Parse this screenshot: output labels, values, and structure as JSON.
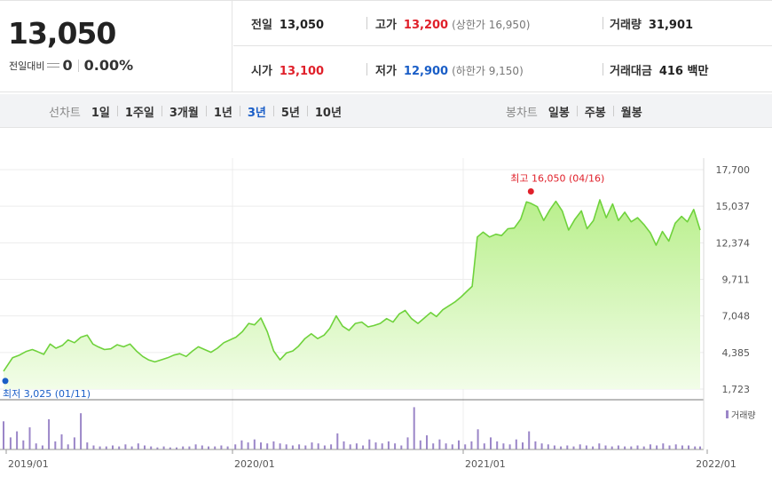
{
  "quote": {
    "price": "13,050",
    "change_label": "전일대비",
    "change_value": "0",
    "change_rate": "0.00%",
    "row1": {
      "prev_label": "전일",
      "prev_value": "13,050",
      "high_label": "고가",
      "high_value": "13,200",
      "upper_limit": "(상한가 16,950)",
      "volume_label": "거래량",
      "volume_value": "31,901"
    },
    "row2": {
      "open_label": "시가",
      "open_value": "13,100",
      "low_label": "저가",
      "low_value": "12,900",
      "lower_limit": "(하한가 9,150)",
      "amount_label": "거래대금",
      "amount_value": "416 백만"
    }
  },
  "toolbar": {
    "line_chart_label": "선차트",
    "periods": [
      "1일",
      "1주일",
      "3개월",
      "1년",
      "3년",
      "5년",
      "10년"
    ],
    "active_period": "3년",
    "candle_chart_label": "봉차트",
    "candle_periods": [
      "일봉",
      "주봉",
      "월봉"
    ]
  },
  "colors": {
    "up": "#e0202a",
    "down": "#1a5ec7",
    "line": "#6fd23c",
    "area_top": "#b9ef8c",
    "area_bottom": "#f2fde8",
    "volume": "#9b86c8"
  },
  "chart_data": {
    "type": "area",
    "ylim": [
      1723,
      17700
    ],
    "y_ticks": [
      "17,700",
      "15,037",
      "12,374",
      "9,711",
      "7,048",
      "4,385",
      "1,723"
    ],
    "x_ticks": [
      "2019/01",
      "2020/01",
      "2021/01",
      "2022/01"
    ],
    "volume_legend": "거래량",
    "max_annotation": "최고 16,050 (04/16)",
    "min_annotation": "최저 3,025 (01/11)",
    "max_value": 16050,
    "min_value": 3025,
    "x_start": "2019/01/11",
    "x_end": "2022/01",
    "price_series": [
      [
        "2019-01-11",
        3025
      ],
      [
        "2019-01-25",
        4000
      ],
      [
        "2019-02-05",
        4200
      ],
      [
        "2019-02-15",
        4450
      ],
      [
        "2019-02-25",
        4600
      ],
      [
        "2019-03-05",
        4450
      ],
      [
        "2019-03-15",
        4250
      ],
      [
        "2019-03-25",
        5000
      ],
      [
        "2019-04-03",
        4700
      ],
      [
        "2019-04-13",
        4900
      ],
      [
        "2019-04-22",
        5300
      ],
      [
        "2019-05-02",
        5100
      ],
      [
        "2019-05-12",
        5500
      ],
      [
        "2019-05-22",
        5650
      ],
      [
        "2019-05-31",
        5000
      ],
      [
        "2019-06-08",
        4800
      ],
      [
        "2019-06-18",
        4600
      ],
      [
        "2019-06-28",
        4650
      ],
      [
        "2019-07-08",
        4950
      ],
      [
        "2019-07-18",
        4800
      ],
      [
        "2019-07-28",
        5000
      ],
      [
        "2019-08-07",
        4500
      ],
      [
        "2019-08-17",
        4100
      ],
      [
        "2019-08-26",
        3850
      ],
      [
        "2019-09-05",
        3700
      ],
      [
        "2019-09-15",
        3850
      ],
      [
        "2019-09-25",
        4000
      ],
      [
        "2019-10-05",
        4200
      ],
      [
        "2019-10-14",
        4300
      ],
      [
        "2019-10-24",
        4100
      ],
      [
        "2019-11-03",
        4500
      ],
      [
        "2019-11-12",
        4800
      ],
      [
        "2019-11-22",
        4600
      ],
      [
        "2019-12-02",
        4400
      ],
      [
        "2019-12-12",
        4700
      ],
      [
        "2019-12-22",
        5100
      ],
      [
        "2020-01-10",
        5500
      ],
      [
        "2020-01-20",
        5900
      ],
      [
        "2020-01-30",
        6500
      ],
      [
        "2020-02-08",
        6400
      ],
      [
        "2020-02-18",
        6900
      ],
      [
        "2020-02-28",
        5900
      ],
      [
        "2020-03-09",
        4500
      ],
      [
        "2020-03-19",
        3850
      ],
      [
        "2020-03-29",
        4350
      ],
      [
        "2020-04-08",
        4500
      ],
      [
        "2020-04-17",
        4850
      ],
      [
        "2020-04-27",
        5400
      ],
      [
        "2020-05-07",
        5750
      ],
      [
        "2020-05-17",
        5400
      ],
      [
        "2020-05-27",
        5650
      ],
      [
        "2020-06-05",
        6150
      ],
      [
        "2020-06-15",
        7050
      ],
      [
        "2020-06-25",
        6300
      ],
      [
        "2020-07-05",
        6000
      ],
      [
        "2020-07-15",
        6500
      ],
      [
        "2020-07-25",
        6600
      ],
      [
        "2020-08-04",
        6250
      ],
      [
        "2020-08-13",
        6350
      ],
      [
        "2020-08-23",
        6500
      ],
      [
        "2020-09-02",
        6850
      ],
      [
        "2020-09-12",
        6600
      ],
      [
        "2020-09-22",
        7200
      ],
      [
        "2020-10-01",
        7450
      ],
      [
        "2020-10-11",
        6850
      ],
      [
        "2020-10-21",
        6500
      ],
      [
        "2020-10-31",
        6900
      ],
      [
        "2020-11-10",
        7300
      ],
      [
        "2020-11-19",
        7000
      ],
      [
        "2020-11-29",
        7500
      ],
      [
        "2020-12-09",
        7800
      ],
      [
        "2020-12-19",
        8100
      ],
      [
        "2020-12-28",
        8450
      ],
      [
        "2021-01-07",
        8900
      ],
      [
        "2021-01-14",
        9200
      ],
      [
        "2021-01-22",
        12800
      ],
      [
        "2021-01-31",
        13150
      ],
      [
        "2021-02-10",
        12800
      ],
      [
        "2021-02-20",
        13000
      ],
      [
        "2021-03-01",
        12900
      ],
      [
        "2021-03-11",
        13400
      ],
      [
        "2021-03-21",
        13450
      ],
      [
        "2021-03-31",
        14100
      ],
      [
        "2021-04-09",
        15350
      ],
      [
        "2021-04-16",
        15250
      ],
      [
        "2021-04-26",
        15000
      ],
      [
        "2021-05-06",
        14000
      ],
      [
        "2021-05-16",
        14800
      ],
      [
        "2021-05-25",
        15400
      ],
      [
        "2021-06-04",
        14700
      ],
      [
        "2021-06-14",
        13300
      ],
      [
        "2021-06-24",
        14100
      ],
      [
        "2021-07-04",
        14700
      ],
      [
        "2021-07-13",
        13400
      ],
      [
        "2021-07-23",
        14000
      ],
      [
        "2021-08-02",
        15500
      ],
      [
        "2021-08-12",
        14200
      ],
      [
        "2021-08-22",
        15200
      ],
      [
        "2021-08-31",
        14000
      ],
      [
        "2021-09-10",
        14600
      ],
      [
        "2021-09-20",
        13900
      ],
      [
        "2021-09-30",
        14200
      ],
      [
        "2021-10-10",
        13700
      ],
      [
        "2021-10-20",
        13100
      ],
      [
        "2021-10-29",
        12200
      ],
      [
        "2021-11-08",
        13200
      ],
      [
        "2021-11-18",
        12500
      ],
      [
        "2021-11-28",
        13800
      ],
      [
        "2021-12-08",
        14300
      ],
      [
        "2021-12-17",
        13900
      ],
      [
        "2021-12-27",
        14800
      ],
      [
        "2022-01-06",
        13300
      ]
    ],
    "volume_series": [
      [
        "2019-01-11",
        28
      ],
      [
        "2019-01-22",
        12
      ],
      [
        "2019-02-01",
        18
      ],
      [
        "2019-02-11",
        9
      ],
      [
        "2019-02-21",
        22
      ],
      [
        "2019-03-03",
        6
      ],
      [
        "2019-03-13",
        4
      ],
      [
        "2019-03-23",
        30
      ],
      [
        "2019-04-02",
        8
      ],
      [
        "2019-04-12",
        15
      ],
      [
        "2019-04-22",
        5
      ],
      [
        "2019-05-02",
        12
      ],
      [
        "2019-05-12",
        36
      ],
      [
        "2019-05-22",
        7
      ],
      [
        "2019-06-01",
        4
      ],
      [
        "2019-06-11",
        3
      ],
      [
        "2019-06-21",
        3
      ],
      [
        "2019-07-01",
        4
      ],
      [
        "2019-07-11",
        3
      ],
      [
        "2019-07-21",
        5
      ],
      [
        "2019-07-31",
        3
      ],
      [
        "2019-08-10",
        6
      ],
      [
        "2019-08-20",
        4
      ],
      [
        "2019-08-30",
        3
      ],
      [
        "2019-09-09",
        2
      ],
      [
        "2019-09-19",
        3
      ],
      [
        "2019-09-29",
        2
      ],
      [
        "2019-10-09",
        2
      ],
      [
        "2019-10-19",
        3
      ],
      [
        "2019-10-29",
        3
      ],
      [
        "2019-11-08",
        5
      ],
      [
        "2019-11-18",
        4
      ],
      [
        "2019-11-28",
        3
      ],
      [
        "2019-12-08",
        3
      ],
      [
        "2019-12-18",
        4
      ],
      [
        "2019-12-28",
        3
      ],
      [
        "2020-01-09",
        5
      ],
      [
        "2020-01-19",
        9
      ],
      [
        "2020-01-29",
        7
      ],
      [
        "2020-02-08",
        10
      ],
      [
        "2020-02-18",
        7
      ],
      [
        "2020-02-28",
        6
      ],
      [
        "2020-03-09",
        8
      ],
      [
        "2020-03-19",
        6
      ],
      [
        "2020-03-29",
        5
      ],
      [
        "2020-04-08",
        4
      ],
      [
        "2020-04-18",
        5
      ],
      [
        "2020-04-28",
        4
      ],
      [
        "2020-05-08",
        7
      ],
      [
        "2020-05-18",
        6
      ],
      [
        "2020-05-28",
        4
      ],
      [
        "2020-06-07",
        5
      ],
      [
        "2020-06-17",
        16
      ],
      [
        "2020-06-27",
        8
      ],
      [
        "2020-07-07",
        5
      ],
      [
        "2020-07-17",
        6
      ],
      [
        "2020-07-27",
        4
      ],
      [
        "2020-08-06",
        10
      ],
      [
        "2020-08-16",
        7
      ],
      [
        "2020-08-26",
        6
      ],
      [
        "2020-09-05",
        8
      ],
      [
        "2020-09-15",
        6
      ],
      [
        "2020-09-25",
        4
      ],
      [
        "2020-10-05",
        12
      ],
      [
        "2020-10-15",
        42
      ],
      [
        "2020-10-25",
        9
      ],
      [
        "2020-11-04",
        14
      ],
      [
        "2020-11-14",
        6
      ],
      [
        "2020-11-24",
        10
      ],
      [
        "2020-12-04",
        6
      ],
      [
        "2020-12-14",
        5
      ],
      [
        "2020-12-24",
        9
      ],
      [
        "2021-01-03",
        5
      ],
      [
        "2021-01-13",
        8
      ],
      [
        "2021-01-23",
        20
      ],
      [
        "2021-02-02",
        6
      ],
      [
        "2021-02-12",
        12
      ],
      [
        "2021-02-22",
        8
      ],
      [
        "2021-03-04",
        6
      ],
      [
        "2021-03-14",
        5
      ],
      [
        "2021-03-24",
        10
      ],
      [
        "2021-04-03",
        7
      ],
      [
        "2021-04-13",
        18
      ],
      [
        "2021-04-23",
        8
      ],
      [
        "2021-05-03",
        6
      ],
      [
        "2021-05-13",
        5
      ],
      [
        "2021-05-23",
        4
      ],
      [
        "2021-06-02",
        3
      ],
      [
        "2021-06-12",
        4
      ],
      [
        "2021-06-22",
        3
      ],
      [
        "2021-07-02",
        5
      ],
      [
        "2021-07-12",
        4
      ],
      [
        "2021-07-22",
        3
      ],
      [
        "2021-08-01",
        6
      ],
      [
        "2021-08-11",
        4
      ],
      [
        "2021-08-21",
        3
      ],
      [
        "2021-08-31",
        4
      ],
      [
        "2021-09-10",
        3
      ],
      [
        "2021-09-20",
        3
      ],
      [
        "2021-09-30",
        4
      ],
      [
        "2021-10-10",
        3
      ],
      [
        "2021-10-20",
        5
      ],
      [
        "2021-10-30",
        4
      ],
      [
        "2021-11-09",
        6
      ],
      [
        "2021-11-19",
        4
      ],
      [
        "2021-11-29",
        5
      ],
      [
        "2021-12-09",
        4
      ],
      [
        "2021-12-19",
        4
      ],
      [
        "2021-12-29",
        3
      ],
      [
        "2022-01-06",
        3
      ]
    ]
  }
}
